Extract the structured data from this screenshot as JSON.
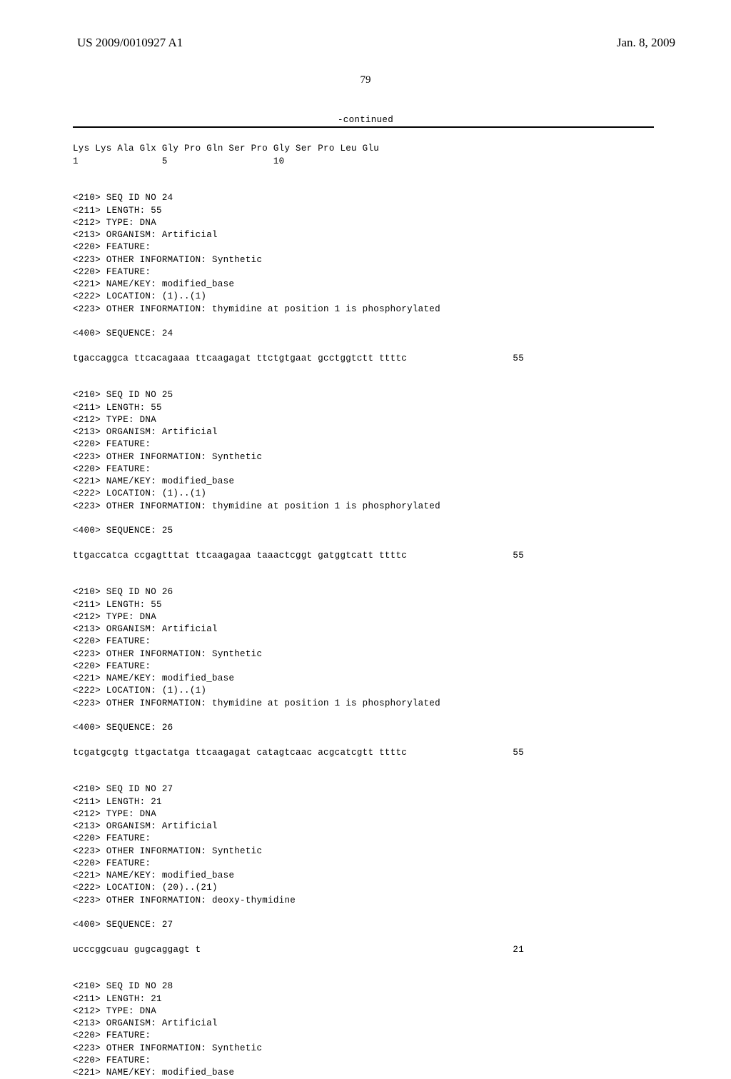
{
  "header": {
    "pub_number": "US 2009/0010927 A1",
    "pub_date": "Jan. 8, 2009"
  },
  "page_number": "79",
  "continued_label": "-continued",
  "aa_seq": {
    "line": "Lys Lys Ala Glx Gly Pro Gln Ser Pro Gly Ser Pro Leu Glu",
    "nums": "1               5                   10"
  },
  "entries": [
    {
      "id": "24",
      "length": "55",
      "type": "DNA",
      "organism": "Artificial",
      "other_info1": "Synthetic",
      "name_key": "modified_base",
      "location": "(1)..(1)",
      "other_info2": "thymidine at position 1 is phosphorylated",
      "seq_label": "24",
      "sequence": "tgaccaggca ttcacagaaa ttcaagagat ttctgtgaat gcctggtctt ttttc",
      "seq_pos": "55"
    },
    {
      "id": "25",
      "length": "55",
      "type": "DNA",
      "organism": "Artificial",
      "other_info1": "Synthetic",
      "name_key": "modified_base",
      "location": "(1)..(1)",
      "other_info2": "thymidine at position 1 is phosphorylated",
      "seq_label": "25",
      "sequence": "ttgaccatca ccgagtttat ttcaagagaa taaactcggt gatggtcatt ttttc",
      "seq_pos": "55"
    },
    {
      "id": "26",
      "length": "55",
      "type": "DNA",
      "organism": "Artificial",
      "other_info1": "Synthetic",
      "name_key": "modified_base",
      "location": "(1)..(1)",
      "other_info2": "thymidine at position 1 is phosphorylated",
      "seq_label": "26",
      "sequence": "tcgatgcgtg ttgactatga ttcaagagat catagtcaac acgcatcgtt ttttc",
      "seq_pos": "55"
    },
    {
      "id": "27",
      "length": "21",
      "type": "DNA",
      "organism": "Artificial",
      "other_info1": "Synthetic",
      "name_key": "modified_base",
      "location": "(20)..(21)",
      "other_info2": "deoxy-thymidine",
      "seq_label": "27",
      "sequence": "ucccggcuau gugcaggagt t",
      "seq_pos": "21"
    },
    {
      "id": "28",
      "length": "21",
      "type": "DNA",
      "organism": "Artificial",
      "other_info1": "Synthetic",
      "name_key": "modified_base",
      "location": "",
      "other_info2": "",
      "seq_label": "",
      "sequence": "",
      "seq_pos": ""
    }
  ]
}
